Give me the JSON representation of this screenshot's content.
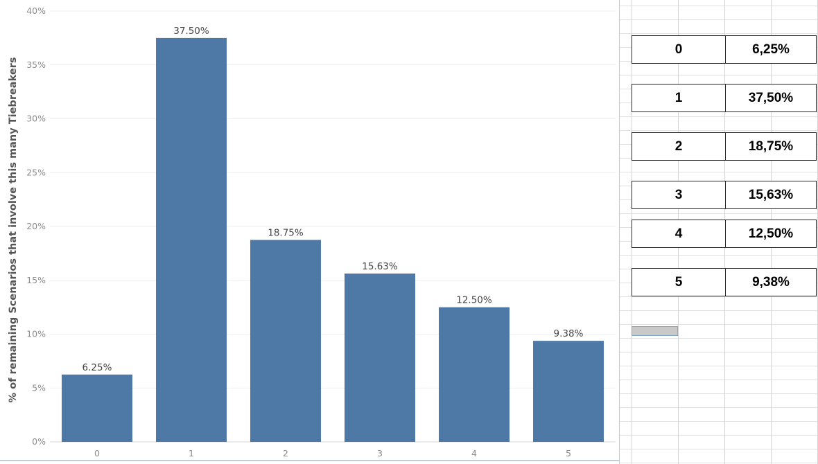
{
  "chart_data": {
    "type": "bar",
    "categories": [
      "0",
      "1",
      "2",
      "3",
      "4",
      "5"
    ],
    "values": [
      6.25,
      37.5,
      18.75,
      15.63,
      12.5,
      9.38
    ],
    "value_labels": [
      "6.25%",
      "37.50%",
      "18.75%",
      "15.63%",
      "12.50%",
      "9.38%"
    ],
    "ylabel": "% of remaining Scenarios that involve this many Tiebreakers",
    "xlabel": "",
    "ylim": [
      0,
      40
    ],
    "yticks": [
      0,
      5,
      10,
      15,
      20,
      25,
      30,
      35,
      40
    ],
    "ytick_labels": [
      "0%",
      "5%",
      "10%",
      "15%",
      "20%",
      "25%",
      "30%",
      "35%",
      "40%"
    ],
    "grid": true,
    "colors": {
      "bar": "#4e79a7",
      "grid": "#efefef"
    }
  },
  "table": {
    "rows": [
      {
        "key": "0",
        "value": "6,25%"
      },
      {
        "key": "1",
        "value": "37,50%"
      },
      {
        "key": "2",
        "value": "18,75%"
      },
      {
        "key": "3",
        "value": "15,63%"
      },
      {
        "key": "4",
        "value": "12,50%"
      },
      {
        "key": "5",
        "value": "9,38%"
      }
    ]
  }
}
